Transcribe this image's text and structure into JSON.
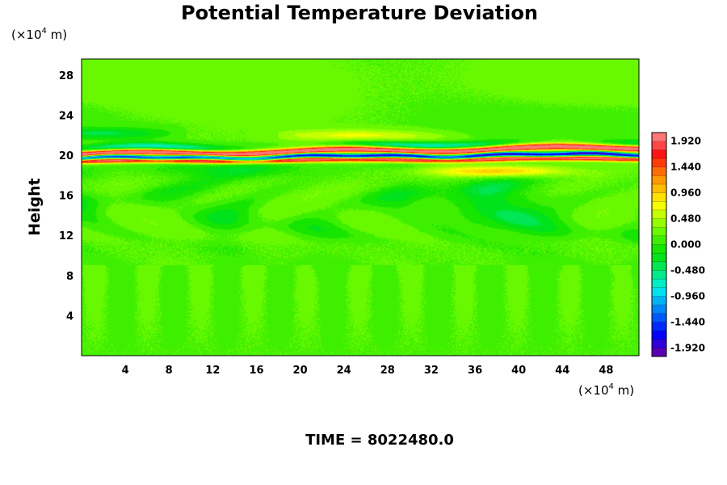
{
  "chart_data": {
    "type": "heatmap",
    "title": "Potential Temperature Deviation",
    "ylabel": "Height",
    "x_unit": {
      "base": "(×10",
      "exp": "4",
      "suffix": " m)"
    },
    "y_unit": {
      "base": "(×10",
      "exp": "4",
      "suffix": " m)"
    },
    "xlim": [
      0,
      51
    ],
    "ylim": [
      0,
      29.6
    ],
    "x_ticks": [
      4,
      8,
      12,
      16,
      20,
      24,
      28,
      32,
      36,
      40,
      44,
      48
    ],
    "y_ticks": [
      4,
      8,
      12,
      16,
      20,
      24,
      28
    ],
    "x_tick_labels": [
      "4",
      "8",
      "12",
      "16",
      "20",
      "24",
      "28",
      "32",
      "36",
      "40",
      "44",
      "48"
    ],
    "y_tick_labels": [
      "4",
      "8",
      "12",
      "16",
      "20",
      "24",
      "28"
    ],
    "colorbar": {
      "min": -2.08,
      "max": 2.08,
      "labels": [
        "1.920",
        "1.440",
        "0.960",
        "0.480",
        "0.000",
        "-0.480",
        "-0.960",
        "-1.440",
        "-1.920"
      ],
      "label_values": [
        1.92,
        1.44,
        0.96,
        0.48,
        0.0,
        -0.48,
        -0.96,
        -1.44,
        -1.92
      ],
      "bins": 26
    },
    "colors": {
      "low": "#7000a0",
      "blue": "#0000ff",
      "cyan": "#00f0f0",
      "green": "#00e000",
      "lime": "#80ff00",
      "yellow": "#ffff00",
      "orange": "#ff9000",
      "red": "#ff1010",
      "high": "#ff9090"
    },
    "field_description": {
      "background": 0.15,
      "warm_layer_height": [
        20.2,
        20.6
      ],
      "cold_layer_height": [
        19.6,
        20.0
      ],
      "turbulent_region_height": [
        10,
        18
      ]
    },
    "time_label": "TIME = 8022480.0"
  }
}
